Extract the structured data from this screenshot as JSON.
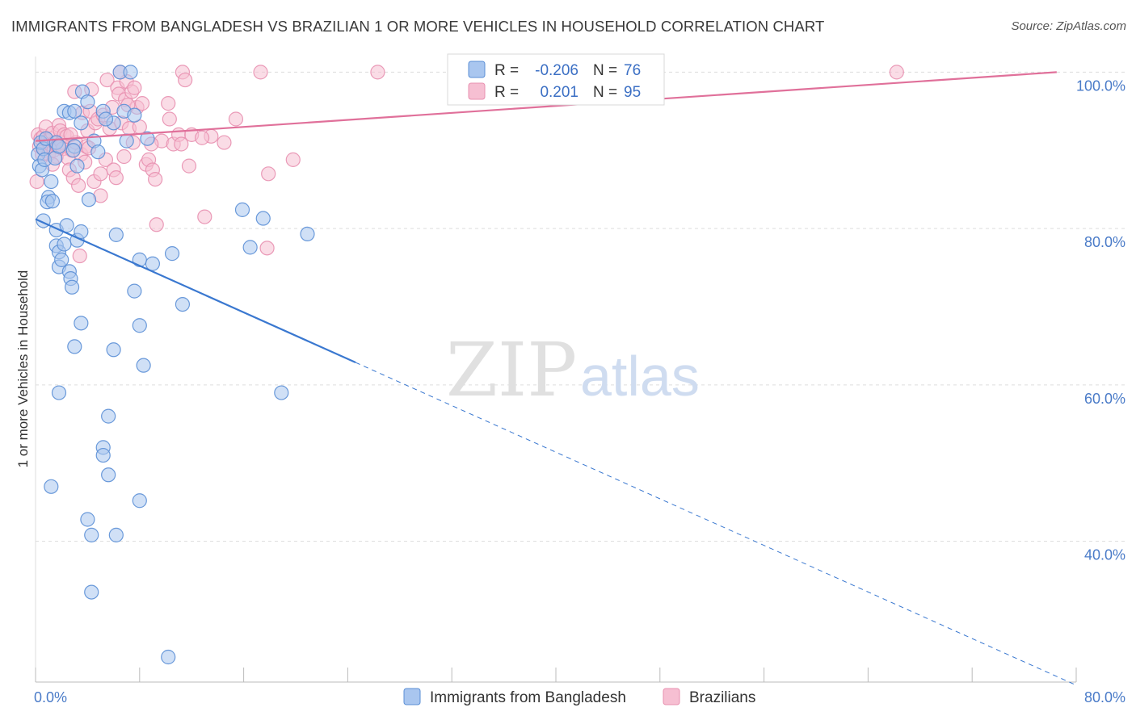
{
  "header": {
    "title": "IMMIGRANTS FROM BANGLADESH VS BRAZILIAN 1 OR MORE VEHICLES IN HOUSEHOLD CORRELATION CHART",
    "source": "Source: ZipAtlas.com"
  },
  "watermark": {
    "zip": "ZIP",
    "atlas": "atlas"
  },
  "legend_box": {
    "rows": [
      {
        "r_label": "R =",
        "r_value": "-0.206",
        "n_label": "N =",
        "n_value": "76"
      },
      {
        "r_label": "R =",
        "r_value": "0.201",
        "n_label": "N =",
        "n_value": "95"
      }
    ]
  },
  "colors": {
    "blue_fill": "#a9c6ef",
    "blue_stroke": "#5b8fd6",
    "blue_line": "#3a78d0",
    "pink_fill": "#f6bfd2",
    "pink_stroke": "#e890b0",
    "pink_line": "#e0709a",
    "grid": "#dddddd",
    "tick_text": "#4a7bc8"
  },
  "chart_data": {
    "type": "scatter",
    "title": "IMMIGRANTS FROM BANGLADESH VS BRAZILIAN 1 OR MORE VEHICLES IN HOUSEHOLD CORRELATION CHART",
    "xlabel": "",
    "ylabel": "1 or more Vehicles in Household",
    "xlim": [
      0,
      80
    ],
    "ylim": [
      22,
      102
    ],
    "x_tick_labels": [
      "0.0%",
      "80.0%"
    ],
    "y_ticks": [
      40,
      60,
      80,
      100
    ],
    "y_tick_labels": [
      "40.0%",
      "60.0%",
      "80.0%",
      "100.0%"
    ],
    "legend_position": "top-center",
    "series": [
      {
        "name": "Immigrants from Bangladesh",
        "r": -0.206,
        "n": 76,
        "trend": {
          "x_start": 0,
          "y_start": 81.2,
          "x_solid_end": 24.6,
          "x_end": 80,
          "y_end": 21.6
        },
        "points": [
          [
            0.2,
            89.5
          ],
          [
            0.3,
            88.0
          ],
          [
            0.4,
            91.0
          ],
          [
            0.5,
            87.5
          ],
          [
            0.6,
            90.2
          ],
          [
            0.8,
            91.5
          ],
          [
            0.7,
            88.8
          ],
          [
            1.0,
            84.0
          ],
          [
            0.9,
            83.4
          ],
          [
            1.2,
            86.0
          ],
          [
            1.3,
            83.5
          ],
          [
            1.5,
            89.0
          ],
          [
            1.6,
            91.0
          ],
          [
            1.8,
            90.5
          ],
          [
            0.6,
            81.0
          ],
          [
            1.6,
            79.8
          ],
          [
            1.6,
            77.8
          ],
          [
            1.8,
            77.0
          ],
          [
            1.8,
            75.1
          ],
          [
            2.0,
            76.0
          ],
          [
            2.2,
            78.0
          ],
          [
            2.4,
            80.4
          ],
          [
            2.6,
            74.5
          ],
          [
            2.7,
            73.6
          ],
          [
            2.8,
            72.5
          ],
          [
            3.2,
            78.5
          ],
          [
            3.5,
            79.6
          ],
          [
            2.2,
            95.0
          ],
          [
            2.6,
            94.8
          ],
          [
            3.0,
            95.0
          ],
          [
            3.2,
            88.0
          ],
          [
            3.5,
            93.5
          ],
          [
            3.6,
            97.5
          ],
          [
            3.0,
            90.5
          ],
          [
            4.0,
            96.2
          ],
          [
            4.1,
            83.7
          ],
          [
            4.5,
            91.2
          ],
          [
            4.8,
            89.8
          ],
          [
            5.2,
            95.0
          ],
          [
            6.0,
            93.5
          ],
          [
            6.2,
            79.2
          ],
          [
            6.5,
            100.0
          ],
          [
            6.8,
            95.0
          ],
          [
            7.0,
            91.2
          ],
          [
            7.3,
            100.0
          ],
          [
            7.6,
            94.5
          ],
          [
            8.0,
            76.0
          ],
          [
            8.6,
            91.5
          ],
          [
            9.0,
            75.5
          ],
          [
            10.5,
            76.8
          ],
          [
            7.6,
            72.0
          ],
          [
            3.0,
            64.9
          ],
          [
            3.5,
            67.9
          ],
          [
            11.3,
            70.3
          ],
          [
            6.0,
            64.5
          ],
          [
            8.0,
            67.6
          ],
          [
            8.3,
            62.5
          ],
          [
            1.8,
            59.0
          ],
          [
            5.6,
            56.0
          ],
          [
            5.2,
            52.0
          ],
          [
            5.2,
            51.0
          ],
          [
            5.6,
            48.5
          ],
          [
            1.2,
            47.0
          ],
          [
            8.0,
            45.2
          ],
          [
            4.0,
            42.8
          ],
          [
            4.3,
            40.8
          ],
          [
            6.2,
            40.8
          ],
          [
            4.3,
            33.5
          ],
          [
            10.2,
            25.2
          ],
          [
            15.9,
            82.4
          ],
          [
            17.5,
            81.3
          ],
          [
            16.5,
            77.6
          ],
          [
            20.9,
            79.3
          ],
          [
            18.9,
            59.0
          ],
          [
            2.9,
            90.0
          ],
          [
            5.4,
            94.0
          ]
        ]
      },
      {
        "name": "Brazilians",
        "r": 0.201,
        "n": 95,
        "trend": {
          "x_start": 0,
          "y_start": 91.2,
          "x_end": 78.5,
          "y_end": 100.0
        },
        "points": [
          [
            0.1,
            86.0
          ],
          [
            0.2,
            92.0
          ],
          [
            0.3,
            90.5
          ],
          [
            0.4,
            91.5
          ],
          [
            0.5,
            89.5
          ],
          [
            0.6,
            91.8
          ],
          [
            0.7,
            90.0
          ],
          [
            0.8,
            93.0
          ],
          [
            0.9,
            91.2
          ],
          [
            1.0,
            89.5
          ],
          [
            1.1,
            90.8
          ],
          [
            1.2,
            91.5
          ],
          [
            1.3,
            92.2
          ],
          [
            1.4,
            90.0
          ],
          [
            1.5,
            91.0
          ],
          [
            1.6,
            89.2
          ],
          [
            1.7,
            90.5
          ],
          [
            1.8,
            93.2
          ],
          [
            1.9,
            92.5
          ],
          [
            2.0,
            91.0
          ],
          [
            2.1,
            90.2
          ],
          [
            2.2,
            92.0
          ],
          [
            2.4,
            91.8
          ],
          [
            2.5,
            89.0
          ],
          [
            2.6,
            87.5
          ],
          [
            2.8,
            90.0
          ],
          [
            2.9,
            86.5
          ],
          [
            3.0,
            97.5
          ],
          [
            3.1,
            91.0
          ],
          [
            3.3,
            85.5
          ],
          [
            3.5,
            89.5
          ],
          [
            3.6,
            94.8
          ],
          [
            3.8,
            88.5
          ],
          [
            3.9,
            90.5
          ],
          [
            4.0,
            92.5
          ],
          [
            4.2,
            95.0
          ],
          [
            4.3,
            97.8
          ],
          [
            4.5,
            86.0
          ],
          [
            4.6,
            93.5
          ],
          [
            4.8,
            94.0
          ],
          [
            5.0,
            84.2
          ],
          [
            5.2,
            94.5
          ],
          [
            5.4,
            88.8
          ],
          [
            5.5,
            99.0
          ],
          [
            5.7,
            92.8
          ],
          [
            5.9,
            95.5
          ],
          [
            6.0,
            87.5
          ],
          [
            6.2,
            86.5
          ],
          [
            6.3,
            98.0
          ],
          [
            6.4,
            97.2
          ],
          [
            6.6,
            93.5
          ],
          [
            6.8,
            89.2
          ],
          [
            6.9,
            96.5
          ],
          [
            7.0,
            98.8
          ],
          [
            7.2,
            92.8
          ],
          [
            7.4,
            97.5
          ],
          [
            7.5,
            91.0
          ],
          [
            7.6,
            98.0
          ],
          [
            7.8,
            95.5
          ],
          [
            8.0,
            93.0
          ],
          [
            8.2,
            96.0
          ],
          [
            8.5,
            88.2
          ],
          [
            8.7,
            88.8
          ],
          [
            9.0,
            87.5
          ],
          [
            9.2,
            86.3
          ],
          [
            9.3,
            80.5
          ],
          [
            9.7,
            91.2
          ],
          [
            10.2,
            96.0
          ],
          [
            10.3,
            94.0
          ],
          [
            10.6,
            90.8
          ],
          [
            11.0,
            92.0
          ],
          [
            11.2,
            90.8
          ],
          [
            11.3,
            100.0
          ],
          [
            11.5,
            99.0
          ],
          [
            11.8,
            88.0
          ],
          [
            12.0,
            92.0
          ],
          [
            13.0,
            81.5
          ],
          [
            13.5,
            91.8
          ],
          [
            14.5,
            91.0
          ],
          [
            15.4,
            94.0
          ],
          [
            17.3,
            100.0
          ],
          [
            17.9,
            87.0
          ],
          [
            17.8,
            77.5
          ],
          [
            19.8,
            88.8
          ],
          [
            26.3,
            100.0
          ],
          [
            66.2,
            100.0
          ],
          [
            6.5,
            100.0
          ],
          [
            7.1,
            95.8
          ],
          [
            3.4,
            76.5
          ],
          [
            5.0,
            87.0
          ],
          [
            2.7,
            92.0
          ],
          [
            1.3,
            88.2
          ],
          [
            4.1,
            90.3
          ],
          [
            8.9,
            90.8
          ],
          [
            12.8,
            91.6
          ]
        ]
      }
    ]
  }
}
